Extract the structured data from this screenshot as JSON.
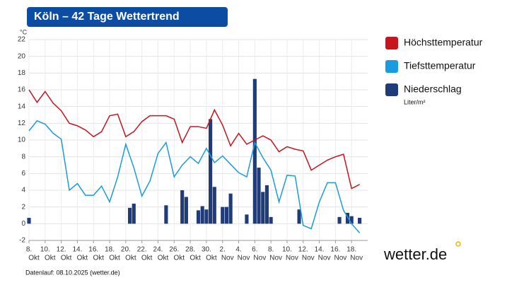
{
  "chart_data": {
    "type": "line",
    "title": "Köln – 42 Tage Wettertrend",
    "y_label": "°C",
    "footer": "Datenlauf: 08.10.2025 (wetter.de)",
    "logo": "wetter.de",
    "xlim": [
      0,
      42
    ],
    "ylim": [
      -2,
      22
    ],
    "yticks": [
      -2,
      0,
      2,
      4,
      6,
      8,
      10,
      12,
      14,
      16,
      18,
      20,
      22
    ],
    "grid": true,
    "xticks": [
      {
        "value": 0,
        "label": "8."
      },
      {
        "value": 2,
        "label": "10."
      },
      {
        "value": 4,
        "label": "12."
      },
      {
        "value": 6,
        "label": "14."
      },
      {
        "value": 8,
        "label": "16."
      },
      {
        "value": 10,
        "label": "18."
      },
      {
        "value": 12,
        "label": "20."
      },
      {
        "value": 14,
        "label": "22."
      },
      {
        "value": 16,
        "label": "24."
      },
      {
        "value": 18,
        "label": "26."
      },
      {
        "value": 20,
        "label": "28."
      },
      {
        "value": 22,
        "label": "30."
      },
      {
        "value": 24,
        "label": "2."
      },
      {
        "value": 26,
        "label": "4."
      },
      {
        "value": 28,
        "label": "6."
      },
      {
        "value": 30,
        "label": "8."
      },
      {
        "value": 32,
        "label": "10."
      },
      {
        "value": 34,
        "label": "12."
      },
      {
        "value": 36,
        "label": "14."
      },
      {
        "value": 38,
        "label": "16."
      },
      {
        "value": 40,
        "label": "18."
      }
    ],
    "xtick_months": [
      "Okt",
      "Okt",
      "Okt",
      "Okt",
      "Okt",
      "Okt",
      "Okt",
      "Okt",
      "Okt",
      "Okt",
      "Okt",
      "Okt",
      "Nov",
      "Nov",
      "Nov",
      "Nov",
      "Nov",
      "Nov",
      "Nov",
      "Nov",
      "Nov"
    ],
    "x": [
      0,
      1,
      2,
      3,
      4,
      5,
      6,
      7,
      8,
      9,
      10,
      11,
      12,
      13,
      14,
      15,
      16,
      17,
      18,
      19,
      20,
      21,
      22,
      23,
      24,
      25,
      26,
      27,
      28,
      29,
      30,
      31,
      32,
      33,
      34,
      35,
      36,
      37,
      38,
      39,
      40,
      41
    ],
    "series": [
      {
        "name": "Höchsttemperatur",
        "type": "line",
        "color": "#c8141c",
        "values": [
          16,
          14.5,
          15.8,
          14.4,
          13.5,
          12,
          11.7,
          11.2,
          10.4,
          11,
          12.9,
          13.1,
          10.4,
          11,
          12.2,
          12.9,
          12.9,
          12.9,
          12.5,
          9.7,
          11.6,
          11.6,
          11.4,
          13.6,
          11.8,
          9.3,
          10.8,
          9.5,
          10,
          10.5,
          10,
          8.6,
          9.2,
          8.9,
          8.7,
          6.4,
          7,
          7.6,
          8,
          8.3,
          4.2,
          4.7
        ]
      },
      {
        "name": "Tiefsttemperatur",
        "type": "line",
        "color": "#1a9be0",
        "values": [
          11.1,
          12.3,
          11.9,
          10.8,
          10.1,
          4,
          4.8,
          3.4,
          3.4,
          4.5,
          2.6,
          5.6,
          9.5,
          6.7,
          3.3,
          5.1,
          8.4,
          9.7,
          5.6,
          7,
          8,
          7.2,
          9,
          7.3,
          8.1,
          7.1,
          6.1,
          5.6,
          9.7,
          7.9,
          6.4,
          2.6,
          5.8,
          5.7,
          -0.2,
          -0.6,
          2.6,
          4.9,
          4.9,
          1.6,
          0,
          -1.1
        ]
      },
      {
        "name": "Niederschlag",
        "type": "bar",
        "color": "#1f3b78",
        "unit": "Liter/m²",
        "x": [
          0,
          12.5,
          13,
          17,
          19,
          19.5,
          21,
          21.5,
          22,
          22.5,
          23,
          24,
          24.5,
          25,
          27,
          28,
          28.5,
          29,
          29.5,
          30,
          33.5,
          38.5,
          39.5,
          40,
          41
        ],
        "values": [
          0.7,
          1.9,
          2.4,
          2.2,
          4,
          3.2,
          1.6,
          2.1,
          1.7,
          12.5,
          4.4,
          2,
          2,
          3.6,
          1.1,
          17.3,
          6.7,
          3.8,
          4.6,
          0.8,
          1.7,
          0.8,
          1.3,
          0.9,
          0.7
        ]
      }
    ]
  }
}
